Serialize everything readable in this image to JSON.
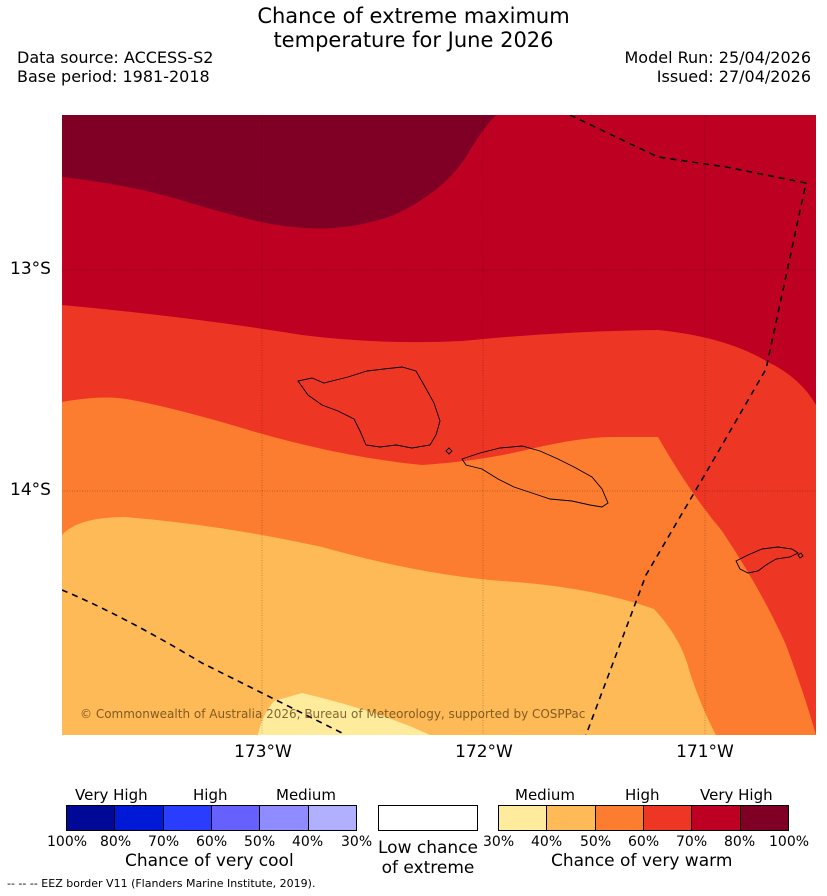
{
  "header": {
    "title_line1": "Chance of extreme maximum",
    "title_line2": "temperature for June 2026",
    "data_source": "Data source: ACCESS-S2",
    "base_period": "Base period: 1981-2018",
    "model_run": "Model Run: 25/04/2026",
    "issued": "Issued: 27/04/2026"
  },
  "map": {
    "lat_ticks": [
      "13°S",
      "14°S"
    ],
    "lon_ticks": [
      "173°W",
      "172°W",
      "171°W"
    ],
    "copyright": "© Commonwealth of Australia 2026, Bureau of Meteorology, supported by COSPPac",
    "colors": {
      "very_high_warm": "#7f0024",
      "high_warm_70": "#be0022",
      "high_warm_60": "#ee3624",
      "medium_high_50": "#fd7d30",
      "medium_40": "#fdba57",
      "medium_30": "#feeb9c"
    }
  },
  "legend": {
    "cool": {
      "headers": [
        "Very High",
        "High",
        "Medium"
      ],
      "percents": [
        "100%",
        "80%",
        "70%",
        "60%",
        "50%",
        "40%",
        "30%"
      ],
      "title": "Chance of very cool",
      "colors": [
        "#000996",
        "#0019d6",
        "#2a3dfe",
        "#6661fe",
        "#8e8cfe",
        "#b0b0fe"
      ]
    },
    "low": {
      "line1": "Low chance",
      "line2": "of extreme"
    },
    "warm": {
      "headers": [
        "Medium",
        "High",
        "Very High"
      ],
      "percents": [
        "30%",
        "40%",
        "50%",
        "60%",
        "70%",
        "80%",
        "100%"
      ],
      "title": "Chance of very warm",
      "colors": [
        "#feeb9c",
        "#fdba57",
        "#fd7d30",
        "#ee3624",
        "#be0022",
        "#7f0024"
      ]
    }
  },
  "footer": {
    "eez": "--  --  -- EEZ border V11 (Flanders Marine Institute, 2019)."
  }
}
